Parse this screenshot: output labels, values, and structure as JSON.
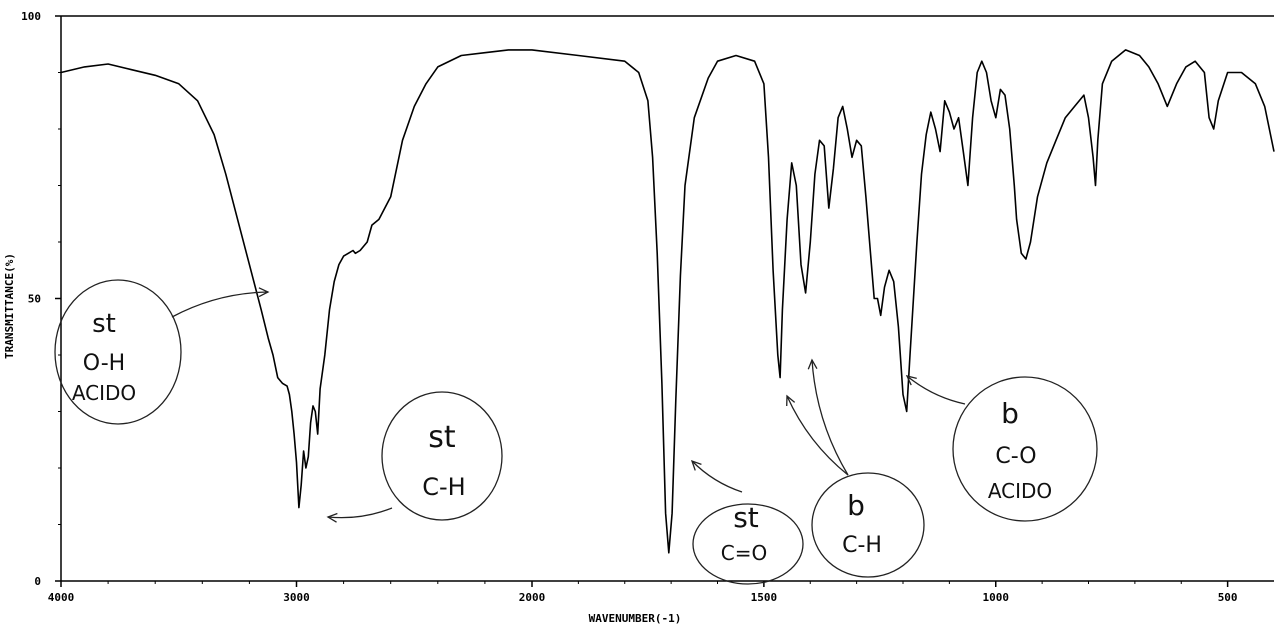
{
  "chart_data": {
    "type": "line",
    "xlabel": "WAVENUMBER(-1)",
    "ylabel": "TRANSMITTANCE(%)",
    "xlim": [
      4000,
      400
    ],
    "ylim": [
      0,
      100
    ],
    "x_ticks": [
      {
        "value": 4000,
        "label": "4000"
      },
      {
        "value": 3000,
        "label": "3000"
      },
      {
        "value": 2000,
        "label": "2000"
      },
      {
        "value": 1500,
        "label": "1500"
      },
      {
        "value": 1000,
        "label": "1000"
      },
      {
        "value": 500,
        "label": "500"
      }
    ],
    "y_ticks": [
      {
        "value": 100,
        "label": "100"
      },
      {
        "value": 50,
        "label": "50"
      },
      {
        "value": 0,
        "label": "0"
      }
    ],
    "series": [
      {
        "values": [
          [
            4000,
            90
          ],
          [
            3900,
            91
          ],
          [
            3800,
            91.5
          ],
          [
            3700,
            90.5
          ],
          [
            3600,
            89.5
          ],
          [
            3500,
            88
          ],
          [
            3420,
            85
          ],
          [
            3350,
            79
          ],
          [
            3300,
            72
          ],
          [
            3250,
            64
          ],
          [
            3200,
            56
          ],
          [
            3150,
            48
          ],
          [
            3120,
            43
          ],
          [
            3100,
            40
          ],
          [
            3080,
            36
          ],
          [
            3060,
            35
          ],
          [
            3040,
            34.5
          ],
          [
            3030,
            33
          ],
          [
            3020,
            30
          ],
          [
            3010,
            26
          ],
          [
            3000,
            21
          ],
          [
            2990,
            13
          ],
          [
            2980,
            17
          ],
          [
            2970,
            23
          ],
          [
            2960,
            20
          ],
          [
            2950,
            22
          ],
          [
            2940,
            28
          ],
          [
            2930,
            31
          ],
          [
            2920,
            30
          ],
          [
            2910,
            26
          ],
          [
            2900,
            34
          ],
          [
            2880,
            40
          ],
          [
            2860,
            48
          ],
          [
            2840,
            53
          ],
          [
            2820,
            56
          ],
          [
            2800,
            57.5
          ],
          [
            2780,
            58
          ],
          [
            2760,
            58.5
          ],
          [
            2750,
            58
          ],
          [
            2730,
            58.5
          ],
          [
            2700,
            60
          ],
          [
            2680,
            63
          ],
          [
            2650,
            64
          ],
          [
            2600,
            68
          ],
          [
            2550,
            78
          ],
          [
            2500,
            84
          ],
          [
            2450,
            88
          ],
          [
            2400,
            91
          ],
          [
            2300,
            93
          ],
          [
            2200,
            93.5
          ],
          [
            2100,
            94
          ],
          [
            2000,
            94
          ],
          [
            1900,
            93
          ],
          [
            1800,
            92
          ],
          [
            1770,
            90
          ],
          [
            1750,
            85
          ],
          [
            1740,
            75
          ],
          [
            1730,
            58
          ],
          [
            1720,
            35
          ],
          [
            1712,
            12
          ],
          [
            1705,
            5
          ],
          [
            1698,
            12
          ],
          [
            1690,
            32
          ],
          [
            1680,
            54
          ],
          [
            1670,
            70
          ],
          [
            1650,
            82
          ],
          [
            1620,
            89
          ],
          [
            1600,
            92
          ],
          [
            1560,
            93
          ],
          [
            1520,
            92
          ],
          [
            1500,
            88
          ],
          [
            1490,
            75
          ],
          [
            1480,
            55
          ],
          [
            1470,
            40
          ],
          [
            1465,
            36
          ],
          [
            1460,
            48
          ],
          [
            1450,
            64
          ],
          [
            1440,
            74
          ],
          [
            1430,
            70
          ],
          [
            1420,
            56
          ],
          [
            1410,
            51
          ],
          [
            1400,
            60
          ],
          [
            1390,
            72
          ],
          [
            1380,
            78
          ],
          [
            1370,
            77
          ],
          [
            1360,
            66
          ],
          [
            1350,
            73
          ],
          [
            1340,
            82
          ],
          [
            1330,
            84
          ],
          [
            1320,
            80
          ],
          [
            1310,
            75
          ],
          [
            1300,
            78
          ],
          [
            1290,
            77
          ],
          [
            1280,
            68
          ],
          [
            1270,
            58
          ],
          [
            1262,
            50
          ],
          [
            1255,
            50
          ],
          [
            1248,
            47
          ],
          [
            1240,
            52
          ],
          [
            1230,
            55
          ],
          [
            1220,
            53
          ],
          [
            1210,
            45
          ],
          [
            1200,
            33
          ],
          [
            1192,
            30
          ],
          [
            1185,
            40
          ],
          [
            1170,
            60
          ],
          [
            1160,
            72
          ],
          [
            1150,
            79
          ],
          [
            1140,
            83
          ],
          [
            1130,
            80
          ],
          [
            1120,
            76
          ],
          [
            1110,
            85
          ],
          [
            1100,
            83
          ],
          [
            1090,
            80
          ],
          [
            1080,
            82
          ],
          [
            1070,
            76
          ],
          [
            1060,
            70
          ],
          [
            1050,
            82
          ],
          [
            1040,
            90
          ],
          [
            1030,
            92
          ],
          [
            1020,
            90
          ],
          [
            1010,
            85
          ],
          [
            1000,
            82
          ],
          [
            990,
            87
          ],
          [
            980,
            86
          ],
          [
            970,
            80
          ],
          [
            960,
            70
          ],
          [
            955,
            64
          ],
          [
            945,
            58
          ],
          [
            935,
            57
          ],
          [
            925,
            60
          ],
          [
            910,
            68
          ],
          [
            890,
            74
          ],
          [
            870,
            78
          ],
          [
            850,
            82
          ],
          [
            830,
            84
          ],
          [
            810,
            86
          ],
          [
            800,
            82
          ],
          [
            790,
            75
          ],
          [
            785,
            70
          ],
          [
            780,
            78
          ],
          [
            770,
            88
          ],
          [
            750,
            92
          ],
          [
            720,
            94
          ],
          [
            690,
            93
          ],
          [
            670,
            91
          ],
          [
            650,
            88
          ],
          [
            630,
            84
          ],
          [
            610,
            88
          ],
          [
            590,
            91
          ],
          [
            570,
            92
          ],
          [
            550,
            90
          ],
          [
            540,
            82
          ],
          [
            530,
            80
          ],
          [
            520,
            85
          ],
          [
            500,
            90
          ],
          [
            470,
            90
          ],
          [
            440,
            88
          ],
          [
            420,
            84
          ],
          [
            400,
            76
          ]
        ]
      }
    ],
    "annotations": [
      {
        "lines": [
          "st",
          "O-H",
          "ACIDO"
        ]
      },
      {
        "lines": [
          "st",
          "C-H"
        ]
      },
      {
        "lines": [
          "st",
          "C=O"
        ]
      },
      {
        "lines": [
          "b",
          "C-H"
        ]
      },
      {
        "lines": [
          "b",
          "C-O",
          "ACIDO"
        ]
      }
    ]
  }
}
